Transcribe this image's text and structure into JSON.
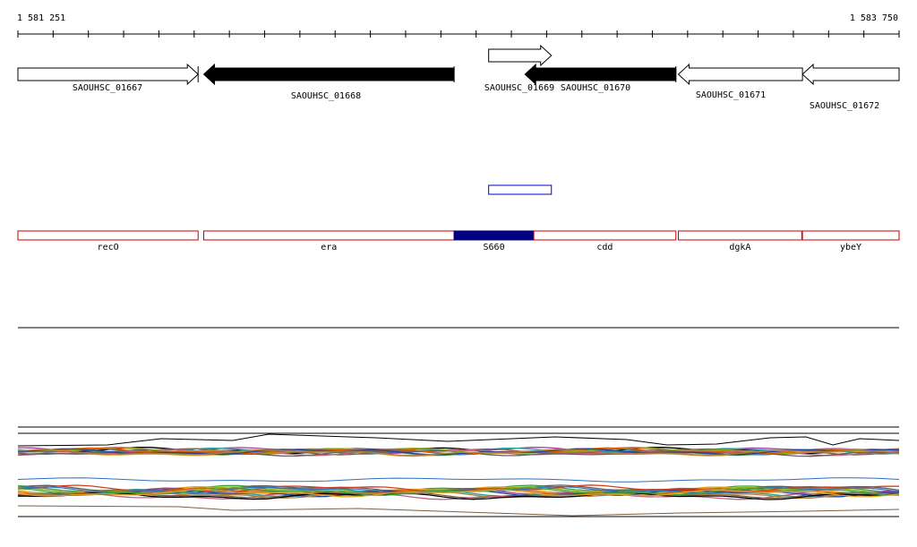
{
  "ruler": {
    "start_label": "1 581 251",
    "end_label": "1 583 750",
    "start_bp": 1581251,
    "end_bp": 1583750
  },
  "genes": [
    {
      "id": "SAOUHSC_01667",
      "start": 1581251,
      "end": 1581762,
      "strand": "+",
      "fill": "#ffffff",
      "row": 0
    },
    {
      "id": "SAOUHSC_01668",
      "start": 1581778,
      "end": 1582488,
      "strand": "-",
      "fill": "#000000",
      "row": 0
    },
    {
      "id": "SAOUHSC_01669",
      "start": 1582586,
      "end": 1582764,
      "strand": "+",
      "fill": "#ffffff",
      "row": -1
    },
    {
      "id": "SAOUHSC_01670",
      "start": 1582689,
      "end": 1583117,
      "strand": "-",
      "fill": "#000000",
      "row": 0
    },
    {
      "id": "SAOUHSC_01671",
      "start": 1583124,
      "end": 1583476,
      "strand": "-",
      "fill": "#ffffff",
      "row": 0
    },
    {
      "id": "SAOUHSC_01672",
      "start": 1583476,
      "end": 1583750,
      "strand": "-",
      "fill": "#ffffff",
      "row": 0
    }
  ],
  "feature_track": {
    "color": "#0000cc",
    "start": 1582586,
    "end": 1582764
  },
  "annotations": [
    {
      "label": "recO",
      "start": 1581251,
      "end": 1581762,
      "filled": false
    },
    {
      "label": "era",
      "start": 1581778,
      "end": 1582488,
      "filled": false
    },
    {
      "label": "S660",
      "start": 1582488,
      "end": 1582714,
      "filled": true
    },
    {
      "label": "cdd",
      "start": 1582714,
      "end": 1583117,
      "filled": false
    },
    {
      "label": "dgkA",
      "start": 1583124,
      "end": 1583474,
      "filled": false
    },
    {
      "label": "ybeY",
      "start": 1583476,
      "end": 1583750,
      "filled": false
    }
  ],
  "colors": {
    "annotation_outline": "#cc0000",
    "annotation_fill": "#000080",
    "gene_outline": "#000000"
  }
}
